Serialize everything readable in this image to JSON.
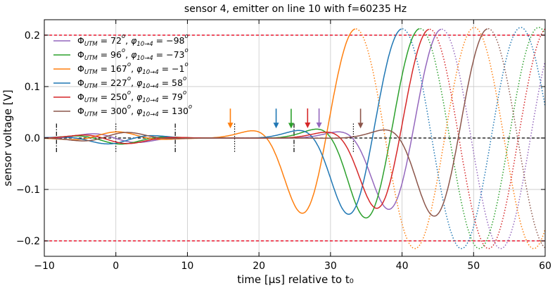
{
  "chart_data": {
    "type": "line",
    "title": "sensor 4, emitter on line 10 with f=60235 Hz",
    "xlabel": "time [μs] relative to t₀",
    "ylabel": "sensor voltage [V]",
    "xlim": [
      -10,
      60
    ],
    "ylim": [
      -0.23,
      0.23
    ],
    "x_ticks": [
      -10,
      0,
      10,
      20,
      30,
      40,
      50,
      60
    ],
    "x_tick_labels": [
      "−10",
      "0",
      "10",
      "20",
      "30",
      "40",
      "50",
      "60"
    ],
    "y_ticks": [
      -0.2,
      -0.1,
      0.0,
      0.1,
      0.2
    ],
    "y_tick_labels": [
      "−0.2",
      "−0.1",
      "0.0",
      "0.1",
      "0.2"
    ],
    "grid": true,
    "legend_position": "top-left",
    "reference_lines": [
      {
        "name": "upper-threshold",
        "y": 0.2,
        "color": "#e8001a",
        "style": "dashed"
      },
      {
        "name": "lower-threshold",
        "y": -0.2,
        "color": "#e8001a",
        "style": "dashed"
      },
      {
        "name": "zero-baseline",
        "y": 0.0,
        "color": "#000000",
        "style": "dashed"
      }
    ],
    "series": [
      {
        "name": "Φ_UTM = 72°, φ_{10→4} = −98°",
        "phi_utm": 72,
        "phi": -98,
        "color": "#9467bd",
        "arrival_us": 28.4,
        "peak_us": 45.5,
        "label_tex": [
          "Φ",
          "UTM",
          " =  72",
          "o",
          ", ",
          "φ",
          "10→4",
          " = −98",
          "o"
        ]
      },
      {
        "name": "Φ_UTM = 96°, φ_{10→4} = −73°",
        "phi_utm": 96,
        "phi": -73,
        "color": "#2ca02c",
        "arrival_us": 24.5,
        "peak_us": 42.5,
        "label_tex": [
          "Φ",
          "UTM",
          " =  96",
          "o",
          ", ",
          "φ",
          "10→4",
          " = −73",
          "o"
        ]
      },
      {
        "name": "Φ_UTM = 167°, φ_{10→4} = −1°",
        "phi_utm": 167,
        "phi": -1,
        "color": "#ff7f0e",
        "arrival_us": 16.0,
        "peak_us": 33.5,
        "label_tex": [
          "Φ",
          "UTM",
          " = 167",
          "o",
          ", ",
          "φ",
          "10→4",
          " = −1",
          "o"
        ]
      },
      {
        "name": "Φ_UTM = 227°, φ_{10→4} = 58°",
        "phi_utm": 227,
        "phi": 58,
        "color": "#1f77b4",
        "arrival_us": 22.4,
        "peak_us": 40.0,
        "label_tex": [
          "Φ",
          "UTM",
          " = 227",
          "o",
          ", ",
          "φ",
          "10→4",
          " = 58",
          "o"
        ]
      },
      {
        "name": "Φ_UTM = 250°, φ_{10→4} = 79°",
        "phi_utm": 250,
        "phi": 79,
        "color": "#d62728",
        "arrival_us": 26.8,
        "peak_us": 43.8,
        "label_tex": [
          "Φ",
          "UTM",
          " = 250",
          "o",
          ", ",
          "φ",
          "10→4",
          " = 79",
          "o"
        ]
      },
      {
        "name": "Φ_UTM = 300°, φ_{10→4} = 130°",
        "phi_utm": 300,
        "phi": 130,
        "color": "#8c564b",
        "arrival_us": 34.2,
        "peak_us": 52.0,
        "label_tex": [
          "Φ",
          "UTM",
          " = 300",
          "o",
          ", ",
          "φ",
          "10→4",
          " = 130",
          "o"
        ]
      }
    ],
    "dashdot_markers_us": [
      -8.3,
      8.3,
      24.9
    ],
    "dotted_markers_us": [
      0,
      16.6,
      33.2
    ]
  }
}
